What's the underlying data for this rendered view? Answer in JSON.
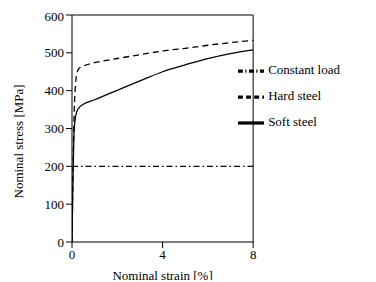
{
  "chart_data": {
    "type": "line",
    "x_label": "Nominal strain [%]",
    "y_label": "Nominal stress [MPa]",
    "x": [
      0,
      0.1,
      0.2,
      0.3,
      0.5,
      1,
      2,
      3,
      4,
      5,
      6,
      7,
      8
    ],
    "series": [
      {
        "name": "Hard steel",
        "color": "#000000",
        "line_style": "dashed",
        "values": [
          0,
          350,
          440,
          458,
          465,
          474,
          485,
          495,
          505,
          512,
          520,
          527,
          533
        ]
      },
      {
        "name": "Soft steel",
        "color": "#000000",
        "line_style": "solid",
        "values": [
          0,
          300,
          343,
          354,
          364,
          376,
          401,
          426,
          450,
          468,
          485,
          498,
          508
        ]
      },
      {
        "name": "Constant load",
        "color": "#000000",
        "line_style": "dashdot",
        "values": [
          200,
          200,
          200,
          200,
          200,
          200,
          200,
          200,
          200,
          200,
          200,
          200,
          200
        ]
      }
    ],
    "xlim": [
      0,
      8
    ],
    "xticks": [
      0,
      4,
      8
    ],
    "ylim": [
      0,
      600
    ],
    "yticks": [
      0,
      100,
      200,
      300,
      400,
      500,
      600
    ],
    "legend": "upper right"
  }
}
